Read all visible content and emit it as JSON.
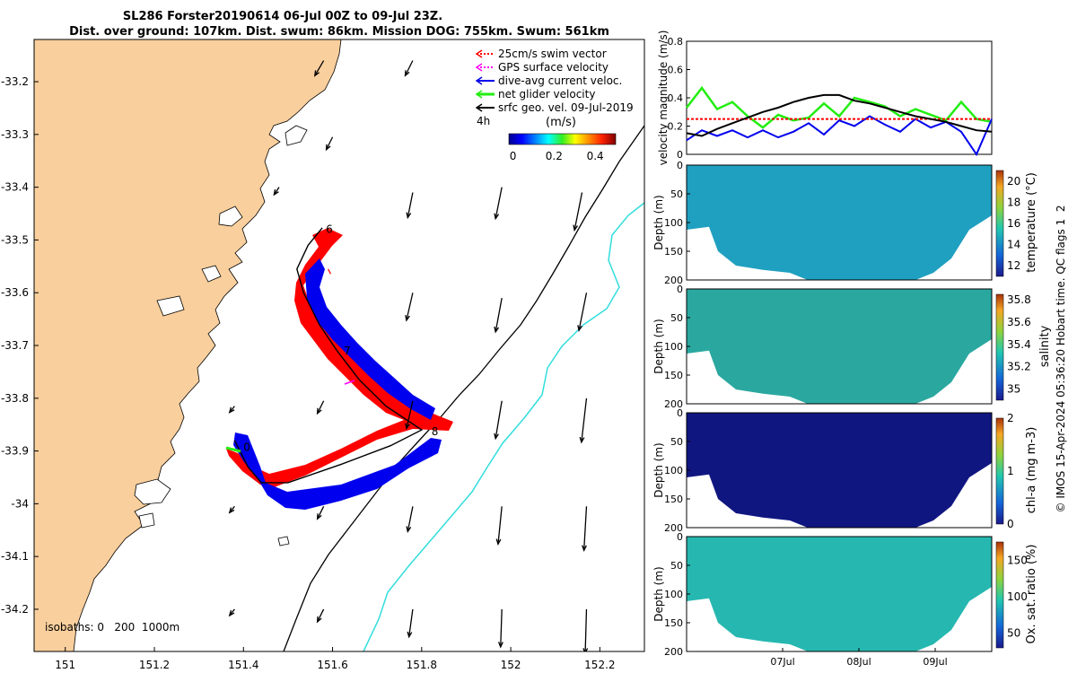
{
  "header": {
    "line1": "SL286 Forster20190614 06-Jul 00Z to 09-Jul 23Z.",
    "line2": "Dist. over ground: 107km. Dist. swum: 86km. Mission DOG: 755km. Swum: 561km"
  },
  "credit": "© IMOS 15-Apr-2024 05:36:20 Hobart time. QC flags 1  2",
  "colors": {
    "land": "#f9cf9d",
    "track_red": "#ff0000",
    "track_blue": "#0000ee",
    "iso0": "#000000",
    "iso1000": "#33dddd",
    "green": "#22ee11",
    "magenta": "#ff00ff"
  },
  "chart_data": [
    {
      "type": "map",
      "xlim": [
        150.93,
        152.3
      ],
      "ylim": [
        -34.28,
        -33.12
      ],
      "x_ticks": [
        "151",
        "151.2",
        "151.4",
        "151.6",
        "151.8",
        "152",
        "152.2"
      ],
      "x_tick_values": [
        151,
        151.2,
        151.4,
        151.6,
        151.8,
        152,
        152.2
      ],
      "y_ticks": [
        "-33.2",
        "-33.3",
        "-33.4",
        "-33.5",
        "-33.6",
        "-33.7",
        "-33.8",
        "-33.9",
        "-34",
        "-34.1",
        "-34.2"
      ],
      "y_tick_values": [
        -33.2,
        -33.3,
        -33.4,
        -33.5,
        -33.6,
        -33.7,
        -33.8,
        -33.9,
        -34,
        -34.1,
        -34.2
      ],
      "legend": [
        {
          "label": "25cm/s swim vector",
          "color": "#ff0000"
        },
        {
          "label": "GPS surface velocity",
          "color": "#ff00ff"
        },
        {
          "label": "dive-avg current veloc.",
          "color": "#0000ee"
        },
        {
          "label": "net glider velocity",
          "color": "#22ee11"
        },
        {
          "label": "srfc geo. vel. 09-Jul-2019",
          "color": "#000000"
        }
      ],
      "legend_note": "4h",
      "colorbar": {
        "label": "(m/s)",
        "ticks": [
          "0",
          "0.2",
          "0.4"
        ],
        "tick_values": [
          0,
          0.2,
          0.4
        ],
        "range": [
          -0.02,
          0.5
        ]
      },
      "isobath_label": "isobaths: 0   200  1000m",
      "day_labels": [
        {
          "text": "6",
          "lon": 151.585,
          "lat": -33.48
        },
        {
          "text": "7",
          "lon": 151.625,
          "lat": -33.71
        },
        {
          "text": "8",
          "lon": 151.822,
          "lat": -33.863
        },
        {
          "text": "0",
          "lon": 151.4,
          "lat": -33.893
        }
      ],
      "track": [
        {
          "lon": 151.577,
          "lat": -33.477
        },
        {
          "lon": 151.545,
          "lat": -33.51
        },
        {
          "lon": 151.52,
          "lat": -33.555
        },
        {
          "lon": 151.535,
          "lat": -33.6
        },
        {
          "lon": 151.57,
          "lat": -33.66
        },
        {
          "lon": 151.61,
          "lat": -33.71
        },
        {
          "lon": 151.66,
          "lat": -33.765
        },
        {
          "lon": 151.72,
          "lat": -33.815
        },
        {
          "lon": 151.8,
          "lat": -33.86
        },
        {
          "lon": 151.73,
          "lat": -33.89
        },
        {
          "lon": 151.62,
          "lat": -33.925
        },
        {
          "lon": 151.5,
          "lat": -33.96
        },
        {
          "lon": 151.44,
          "lat": -33.96
        },
        {
          "lon": 151.41,
          "lat": -33.93
        },
        {
          "lon": 151.38,
          "lat": -33.88
        }
      ],
      "current_vectors": [
        {
          "lon": 151.59,
          "lat": -33.555,
          "u": 0.02,
          "v": -0.04
        },
        {
          "lon": 151.58,
          "lat": -33.5,
          "u": 0.03,
          "v": 0.02
        }
      ],
      "geo_velocity": [
        {
          "lon": 151.58,
          "lat": -33.16,
          "u": -0.07,
          "v": -0.12
        },
        {
          "lon": 151.78,
          "lat": -33.16,
          "u": -0.06,
          "v": -0.12
        },
        {
          "lon": 151.6,
          "lat": -33.305,
          "u": -0.05,
          "v": -0.1
        },
        {
          "lon": 151.48,
          "lat": -33.4,
          "u": -0.04,
          "v": -0.06
        },
        {
          "lon": 151.78,
          "lat": -33.41,
          "u": -0.04,
          "v": -0.2
        },
        {
          "lon": 151.98,
          "lat": -33.4,
          "u": -0.05,
          "v": -0.25
        },
        {
          "lon": 152.16,
          "lat": -33.41,
          "u": -0.06,
          "v": -0.3
        },
        {
          "lon": 151.78,
          "lat": -33.6,
          "u": -0.05,
          "v": -0.22
        },
        {
          "lon": 151.98,
          "lat": -33.61,
          "u": -0.05,
          "v": -0.27
        },
        {
          "lon": 152.17,
          "lat": -33.6,
          "u": -0.06,
          "v": -0.3
        },
        {
          "lon": 151.38,
          "lat": -33.815,
          "u": -0.04,
          "v": -0.05
        },
        {
          "lon": 151.58,
          "lat": -33.805,
          "u": -0.05,
          "v": -0.1
        },
        {
          "lon": 151.78,
          "lat": -33.805,
          "u": -0.05,
          "v": -0.22
        },
        {
          "lon": 151.98,
          "lat": -33.805,
          "u": -0.05,
          "v": -0.3
        },
        {
          "lon": 152.17,
          "lat": -33.8,
          "u": -0.04,
          "v": -0.35
        },
        {
          "lon": 151.38,
          "lat": -34.005,
          "u": -0.04,
          "v": -0.05
        },
        {
          "lon": 151.58,
          "lat": -34.005,
          "u": -0.05,
          "v": -0.1
        },
        {
          "lon": 151.78,
          "lat": -34.005,
          "u": -0.04,
          "v": -0.2
        },
        {
          "lon": 151.98,
          "lat": -34.005,
          "u": -0.03,
          "v": -0.3
        },
        {
          "lon": 152.17,
          "lat": -34.005,
          "u": -0.02,
          "v": -0.35
        },
        {
          "lon": 151.38,
          "lat": -34.2,
          "u": -0.04,
          "v": -0.05
        },
        {
          "lon": 151.58,
          "lat": -34.2,
          "u": -0.05,
          "v": -0.1
        },
        {
          "lon": 151.78,
          "lat": -34.2,
          "u": -0.03,
          "v": -0.22
        },
        {
          "lon": 151.98,
          "lat": -34.2,
          "u": -0.01,
          "v": -0.3
        },
        {
          "lon": 152.17,
          "lat": -34.2,
          "u": -0.01,
          "v": -0.35
        }
      ]
    },
    {
      "type": "line",
      "ylabel": "velocity magnitude (m/s)",
      "ylim": [
        0,
        0.8
      ],
      "y_ticks": [
        "0",
        "0.2",
        "0.4",
        "0.6",
        "0.8"
      ],
      "y_tick_values": [
        0,
        0.2,
        0.4,
        0.6,
        0.8
      ],
      "x": [
        0,
        0.2,
        0.4,
        0.6,
        0.8,
        1.0,
        1.2,
        1.4,
        1.6,
        1.8,
        2.0,
        2.2,
        2.4,
        2.6,
        2.8,
        3.0,
        3.2,
        3.4,
        3.6,
        3.8,
        4.0
      ],
      "series": [
        {
          "color": "#22ee11",
          "values": [
            0.33,
            0.47,
            0.32,
            0.37,
            0.27,
            0.19,
            0.28,
            0.24,
            0.26,
            0.36,
            0.27,
            0.4,
            0.37,
            0.34,
            0.27,
            0.32,
            0.28,
            0.24,
            0.37,
            0.25,
            0.23
          ]
        },
        {
          "color": "#0000ee",
          "values": [
            0.1,
            0.17,
            0.13,
            0.17,
            0.12,
            0.17,
            0.12,
            0.16,
            0.22,
            0.14,
            0.24,
            0.2,
            0.27,
            0.21,
            0.16,
            0.25,
            0.19,
            0.23,
            0.16,
            0.0,
            0.25
          ]
        },
        {
          "color": "#ff0000",
          "dash": true,
          "values": [
            0.25,
            0.25,
            0.25,
            0.25,
            0.25,
            0.25,
            0.25,
            0.25,
            0.25,
            0.25,
            0.25,
            0.25,
            0.25,
            0.25,
            0.25,
            0.25,
            0.25,
            0.25,
            0.25,
            0.25,
            0.25
          ]
        },
        {
          "color": "#000000",
          "values": [
            0.15,
            0.13,
            0.18,
            0.22,
            0.26,
            0.3,
            0.33,
            0.37,
            0.4,
            0.42,
            0.42,
            0.38,
            0.36,
            0.33,
            0.3,
            0.27,
            0.25,
            0.23,
            0.2,
            0.17,
            0.16
          ]
        }
      ]
    },
    {
      "type": "heatmap",
      "ylabel": "Depth (m)",
      "cbar_label": "temperature (°C)",
      "cbar_ticks": [
        "20",
        "18",
        "16",
        "14",
        "12"
      ],
      "cbar_values": [
        20,
        18,
        16,
        14,
        12
      ],
      "range": [
        11,
        21
      ],
      "y_ticks": [
        "0",
        "50",
        "100",
        "150",
        "200"
      ],
      "y_tick_values": [
        0,
        50,
        100,
        150,
        200
      ]
    },
    {
      "type": "heatmap",
      "ylabel": "Depth (m)",
      "cbar_label": "salinity",
      "cbar_ticks": [
        "35.8",
        "35.6",
        "35.4",
        "35.2",
        "35"
      ],
      "cbar_values": [
        35.8,
        35.6,
        35.4,
        35.2,
        35
      ],
      "range": [
        34.9,
        35.85
      ],
      "y_ticks": [
        "0",
        "50",
        "100",
        "150",
        "200"
      ],
      "y_tick_values": [
        0,
        50,
        100,
        150,
        200
      ]
    },
    {
      "type": "heatmap",
      "ylabel": "Depth (m)",
      "cbar_label": "chl-a (mg m-3)",
      "cbar_ticks": [
        "2",
        "1",
        "0"
      ],
      "cbar_values": [
        2,
        1,
        0
      ],
      "range": [
        0,
        2
      ],
      "y_ticks": [
        "0",
        "50",
        "100",
        "150",
        "200"
      ],
      "y_tick_values": [
        0,
        50,
        100,
        150,
        200
      ]
    },
    {
      "type": "heatmap",
      "ylabel": "Depth (m)",
      "cbar_label": "Ox. sat. ratio (%)",
      "cbar_ticks": [
        "150",
        "100",
        "50"
      ],
      "cbar_values": [
        150,
        100,
        50
      ],
      "range": [
        30,
        175
      ],
      "y_ticks": [
        "0",
        "50",
        "100",
        "150",
        "200"
      ],
      "y_tick_values": [
        0,
        50,
        100,
        150,
        200
      ],
      "x_ticks": [
        "07Jul",
        "08Jul",
        "09Jul"
      ],
      "x_tick_values": [
        1,
        2,
        3
      ]
    }
  ]
}
